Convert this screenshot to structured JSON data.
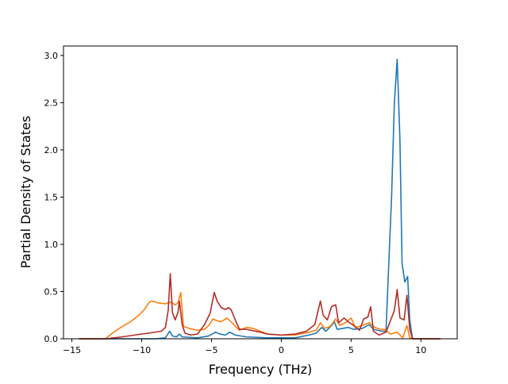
{
  "chart_data": {
    "type": "line",
    "title": "",
    "xlabel": "Frequency (THz)",
    "ylabel": "Partial Density of States",
    "xlim": [
      -15.6,
      12.6
    ],
    "ylim": [
      0,
      3.1
    ],
    "xticks": [
      -15,
      -10,
      -5,
      0,
      5,
      10
    ],
    "xtick_labels": [
      "−15",
      "−10",
      "−5",
      "0",
      "5",
      "10"
    ],
    "yticks": [
      0,
      0.5,
      1.0,
      1.5,
      2.0,
      2.5,
      3.0
    ],
    "ytick_labels": [
      "0.0",
      "0.5",
      "1.0",
      "1.5",
      "2.0",
      "2.5",
      "3.0"
    ],
    "grid": false,
    "legend": null,
    "series": [
      {
        "color": "#1f77b4",
        "points": [
          [
            -14.5,
            0
          ],
          [
            -12,
            0
          ],
          [
            -9,
            0
          ],
          [
            -8.3,
            0.01
          ],
          [
            -8.0,
            0.08
          ],
          [
            -7.8,
            0.03
          ],
          [
            -7.5,
            0.02
          ],
          [
            -7.3,
            0.05
          ],
          [
            -7.1,
            0.02
          ],
          [
            -6,
            0.01
          ],
          [
            -5.2,
            0.03
          ],
          [
            -4.7,
            0.07
          ],
          [
            -4.4,
            0.05
          ],
          [
            -4.0,
            0.04
          ],
          [
            -3.7,
            0.07
          ],
          [
            -3.3,
            0.04
          ],
          [
            -2.5,
            0.02
          ],
          [
            -1,
            0.01
          ],
          [
            0,
            0.01
          ],
          [
            1,
            0.01
          ],
          [
            2,
            0.04
          ],
          [
            2.5,
            0.06
          ],
          [
            2.9,
            0.12
          ],
          [
            3.2,
            0.08
          ],
          [
            3.6,
            0.14
          ],
          [
            3.8,
            0.18
          ],
          [
            4.0,
            0.1
          ],
          [
            4.4,
            0.11
          ],
          [
            4.8,
            0.12
          ],
          [
            5.2,
            0.1
          ],
          [
            5.8,
            0.11
          ],
          [
            6.3,
            0.15
          ],
          [
            6.6,
            0.1
          ],
          [
            7.2,
            0.08
          ],
          [
            7.5,
            0.08
          ],
          [
            7.7,
            0.8
          ],
          [
            7.9,
            1.5
          ],
          [
            8.1,
            2.5
          ],
          [
            8.3,
            2.96
          ],
          [
            8.5,
            2.1
          ],
          [
            8.65,
            0.8
          ],
          [
            8.85,
            0.6
          ],
          [
            9.05,
            0.66
          ],
          [
            9.2,
            0.2
          ],
          [
            9.4,
            0
          ],
          [
            11.4,
            0
          ]
        ]
      },
      {
        "color": "#ff7f0e",
        "points": [
          [
            -14.5,
            0
          ],
          [
            -12.6,
            0
          ],
          [
            -12.1,
            0.06
          ],
          [
            -11.5,
            0.12
          ],
          [
            -10.8,
            0.18
          ],
          [
            -10.2,
            0.25
          ],
          [
            -9.8,
            0.31
          ],
          [
            -9.5,
            0.38
          ],
          [
            -9.3,
            0.4
          ],
          [
            -8.8,
            0.38
          ],
          [
            -8.3,
            0.37
          ],
          [
            -7.9,
            0.39
          ],
          [
            -7.6,
            0.36
          ],
          [
            -7.4,
            0.38
          ],
          [
            -7.2,
            0.49
          ],
          [
            -7.0,
            0.13
          ],
          [
            -6.6,
            0.11
          ],
          [
            -6.0,
            0.09
          ],
          [
            -5.5,
            0.1
          ],
          [
            -5.2,
            0.14
          ],
          [
            -4.9,
            0.21
          ],
          [
            -4.6,
            0.19
          ],
          [
            -4.3,
            0.18
          ],
          [
            -3.9,
            0.22
          ],
          [
            -3.6,
            0.18
          ],
          [
            -3.0,
            0.09
          ],
          [
            -2.5,
            0.12
          ],
          [
            -2.0,
            0.11
          ],
          [
            -1.5,
            0.08
          ],
          [
            -1,
            0.05
          ],
          [
            0,
            0.04
          ],
          [
            1,
            0.04
          ],
          [
            2,
            0.07
          ],
          [
            2.5,
            0.09
          ],
          [
            2.8,
            0.17
          ],
          [
            3.1,
            0.11
          ],
          [
            3.5,
            0.13
          ],
          [
            3.9,
            0.21
          ],
          [
            4.2,
            0.14
          ],
          [
            4.6,
            0.17
          ],
          [
            5.0,
            0.22
          ],
          [
            5.3,
            0.12
          ],
          [
            5.8,
            0.14
          ],
          [
            6.3,
            0.17
          ],
          [
            6.7,
            0.12
          ],
          [
            7.1,
            0.1
          ],
          [
            7.4,
            0.1
          ],
          [
            7.8,
            0.05
          ],
          [
            8.3,
            0.07
          ],
          [
            8.7,
            0.01
          ],
          [
            9.0,
            0.14
          ],
          [
            9.2,
            0.01
          ],
          [
            9.4,
            0
          ],
          [
            11.4,
            0
          ]
        ]
      },
      {
        "color": "#b22d28",
        "points": [
          [
            -14.5,
            0
          ],
          [
            -12.5,
            0
          ],
          [
            -12,
            0.01
          ],
          [
            -11.4,
            0.02
          ],
          [
            -10.5,
            0.04
          ],
          [
            -9.5,
            0.06
          ],
          [
            -8.6,
            0.08
          ],
          [
            -8.3,
            0.12
          ],
          [
            -8.1,
            0.3
          ],
          [
            -7.95,
            0.69
          ],
          [
            -7.8,
            0.28
          ],
          [
            -7.6,
            0.2
          ],
          [
            -7.4,
            0.28
          ],
          [
            -7.3,
            0.4
          ],
          [
            -7.1,
            0.15
          ],
          [
            -6.9,
            0.06
          ],
          [
            -6.5,
            0.04
          ],
          [
            -6.0,
            0.05
          ],
          [
            -5.5,
            0.15
          ],
          [
            -5.1,
            0.27
          ],
          [
            -4.8,
            0.49
          ],
          [
            -4.6,
            0.4
          ],
          [
            -4.3,
            0.33
          ],
          [
            -4.0,
            0.31
          ],
          [
            -3.8,
            0.33
          ],
          [
            -3.6,
            0.31
          ],
          [
            -3.3,
            0.2
          ],
          [
            -3.0,
            0.1
          ],
          [
            -2.5,
            0.1
          ],
          [
            -1.5,
            0.07
          ],
          [
            -1,
            0.05
          ],
          [
            0,
            0.04
          ],
          [
            1,
            0.05
          ],
          [
            1.8,
            0.08
          ],
          [
            2.4,
            0.15
          ],
          [
            2.8,
            0.4
          ],
          [
            3.0,
            0.25
          ],
          [
            3.3,
            0.2
          ],
          [
            3.6,
            0.34
          ],
          [
            3.9,
            0.36
          ],
          [
            4.1,
            0.17
          ],
          [
            4.5,
            0.22
          ],
          [
            4.8,
            0.18
          ],
          [
            5.1,
            0.15
          ],
          [
            5.6,
            0.09
          ],
          [
            5.9,
            0.21
          ],
          [
            6.2,
            0.23
          ],
          [
            6.4,
            0.34
          ],
          [
            6.6,
            0.08
          ],
          [
            7.0,
            0.04
          ],
          [
            7.5,
            0.07
          ],
          [
            8.1,
            0.3
          ],
          [
            8.3,
            0.52
          ],
          [
            8.5,
            0.22
          ],
          [
            8.8,
            0.2
          ],
          [
            9.0,
            0.46
          ],
          [
            9.2,
            0.1
          ],
          [
            9.4,
            0
          ],
          [
            11.4,
            0
          ]
        ]
      }
    ]
  }
}
